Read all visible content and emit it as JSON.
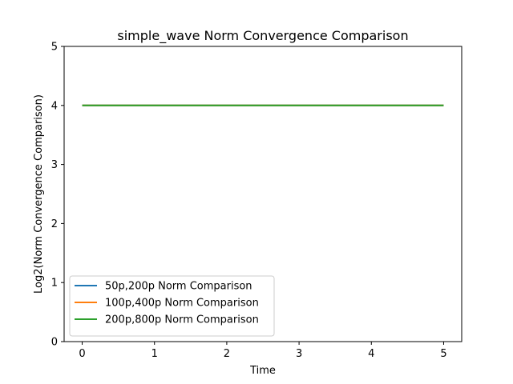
{
  "chart_data": {
    "type": "line",
    "title": "simple_wave Norm Convergence Comparison",
    "xlabel": "Time",
    "ylabel": "Log2(Norm Convergence Comparison)",
    "xlim": [
      -0.25,
      5.25
    ],
    "ylim": [
      0,
      5
    ],
    "xticks": [
      0,
      1,
      2,
      3,
      4,
      5
    ],
    "yticks": [
      0,
      1,
      2,
      3,
      4,
      5
    ],
    "xtick_labels": [
      "0",
      "1",
      "2",
      "3",
      "4",
      "5"
    ],
    "ytick_labels": [
      "0",
      "1",
      "2",
      "3",
      "4",
      "5"
    ],
    "grid": false,
    "legend_position": "lower-left",
    "series": [
      {
        "name": "50p,200p Norm Comparison",
        "color": "#1f77b4",
        "x": [
          0,
          5
        ],
        "y": [
          4,
          4
        ]
      },
      {
        "name": "100p,400p Norm Comparison",
        "color": "#ff7f0e",
        "x": [
          0,
          5
        ],
        "y": [
          4,
          4
        ]
      },
      {
        "name": "200p,800p Norm Comparison",
        "color": "#2ca02c",
        "x": [
          0,
          5
        ],
        "y": [
          4,
          4
        ]
      }
    ]
  }
}
